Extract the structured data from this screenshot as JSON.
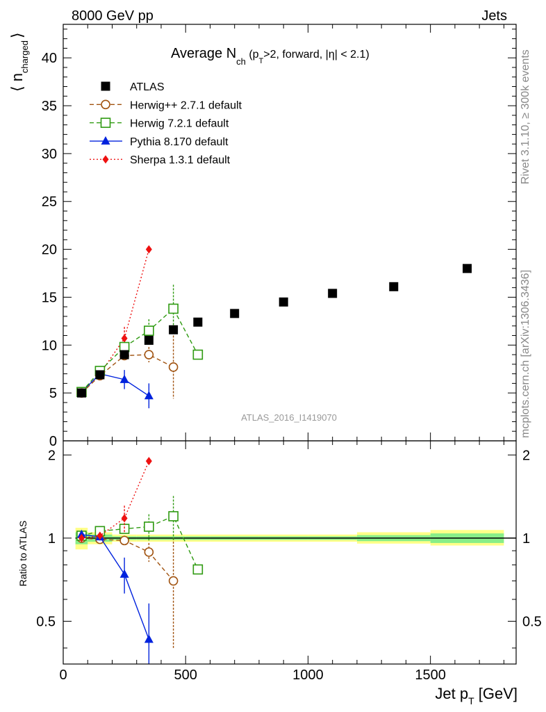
{
  "header": {
    "left": "8000 GeV pp",
    "right": "Jets"
  },
  "side_texts": {
    "rivet": "Rivet 3.1.10, ≥ 300k events",
    "mcplots": "mcplots.cern.ch [arXiv:1306.3436]"
  },
  "watermark": "ATLAS_2016_I1419070",
  "chart_data": [
    {
      "type": "scatter",
      "panel": "main",
      "title_main": "Average N",
      "title_sub": "ch",
      "title_rest_a": " (p",
      "title_rest_sub": "T",
      "title_rest_b": ">2, forward, |η| < 2.1)",
      "ylabel_main": "⟨ n",
      "ylabel_sub": "charged",
      "ylabel_close": "⟩",
      "xlim": [
        0,
        1850
      ],
      "ylim": [
        0,
        43.5
      ],
      "yticks": [
        0,
        5,
        10,
        15,
        20,
        25,
        30,
        35,
        40
      ],
      "ytick_labels": [
        "0",
        "5",
        "10",
        "15",
        "20",
        "25",
        "30",
        "35",
        "40"
      ],
      "legend_position": "top-left",
      "series": [
        {
          "name": "ATLAS",
          "color": "#000000",
          "marker": "square-filled",
          "line": "none",
          "points": [
            {
              "x": 75,
              "y": 5.0,
              "err": 0
            },
            {
              "x": 150,
              "y": 6.9,
              "err": 0
            },
            {
              "x": 250,
              "y": 9.0,
              "err": 0
            },
            {
              "x": 350,
              "y": 10.5,
              "err": 0
            },
            {
              "x": 450,
              "y": 11.6,
              "err": 0
            },
            {
              "x": 550,
              "y": 12.4,
              "err": 0
            },
            {
              "x": 700,
              "y": 13.3,
              "err": 0
            },
            {
              "x": 900,
              "y": 14.5,
              "err": 0
            },
            {
              "x": 1100,
              "y": 15.4,
              "err": 0
            },
            {
              "x": 1350,
              "y": 16.1,
              "err": 0
            },
            {
              "x": 1650,
              "y": 18.0,
              "err": 0
            }
          ]
        },
        {
          "name": "Herwig++ 2.7.1 default",
          "color": "#a0520f",
          "marker": "circle-open",
          "line": "dashed",
          "points": [
            {
              "x": 75,
              "y": 5.0,
              "err": 0.2
            },
            {
              "x": 150,
              "y": 6.8,
              "err": 0.2
            },
            {
              "x": 250,
              "y": 8.9,
              "err": 0.4
            },
            {
              "x": 350,
              "y": 9.0,
              "err": 0.8
            },
            {
              "x": 450,
              "y": 7.7,
              "err": 3.3
            }
          ]
        },
        {
          "name": "Herwig 7.2.1 default",
          "color": "#2e9a10",
          "marker": "square-open",
          "line": "dashed",
          "points": [
            {
              "x": 75,
              "y": 5.1,
              "err": 0.2
            },
            {
              "x": 150,
              "y": 7.3,
              "err": 0.2
            },
            {
              "x": 250,
              "y": 9.8,
              "err": 0.4
            },
            {
              "x": 350,
              "y": 11.5,
              "err": 1.2
            },
            {
              "x": 450,
              "y": 13.8,
              "err": 2.5
            },
            {
              "x": 550,
              "y": 9.0,
              "err": 0
            }
          ]
        },
        {
          "name": "Pythia 8.170 default",
          "color": "#0022dd",
          "marker": "triangle-filled",
          "line": "solid",
          "points": [
            {
              "x": 75,
              "y": 5.1,
              "err": 0.2
            },
            {
              "x": 150,
              "y": 7.0,
              "err": 0.2
            },
            {
              "x": 250,
              "y": 6.4,
              "err": 1.0
            },
            {
              "x": 350,
              "y": 4.7,
              "err": 1.3
            }
          ]
        },
        {
          "name": "Sherpa 1.3.1 default",
          "color": "#ee1111",
          "marker": "diamond-filled",
          "line": "dotted",
          "points": [
            {
              "x": 75,
              "y": 5.0,
              "err": 0.2
            },
            {
              "x": 150,
              "y": 7.0,
              "err": 0.2
            },
            {
              "x": 250,
              "y": 10.7,
              "err": 1.2
            },
            {
              "x": 350,
              "y": 20.0,
              "err": 0
            }
          ]
        }
      ]
    },
    {
      "type": "scatter",
      "panel": "ratio",
      "ylabel": "Ratio to ATLAS",
      "xlabel_main": "Jet p",
      "xlabel_sub": "T",
      "xlabel_unit": " [GeV]",
      "xlim": [
        0,
        1850
      ],
      "ylim": [
        0.35,
        2.25
      ],
      "xticks": [
        0,
        500,
        1000,
        1500
      ],
      "xtick_labels": [
        "0",
        "500",
        "1000",
        "1500"
      ],
      "yticks": [
        0.5,
        1,
        2
      ],
      "ytick_labels": [
        "0.5",
        "1",
        "2"
      ],
      "reference_bands": [
        {
          "x0": 50,
          "x1": 100,
          "inner": [
            0.95,
            1.05
          ],
          "outer": [
            0.91,
            1.09
          ]
        },
        {
          "x0": 100,
          "x1": 200,
          "inner": [
            0.97,
            1.03
          ],
          "outer": [
            0.95,
            1.05
          ]
        },
        {
          "x0": 200,
          "x1": 300,
          "inner": [
            0.985,
            1.015
          ],
          "outer": [
            0.97,
            1.03
          ]
        },
        {
          "x0": 300,
          "x1": 400,
          "inner": [
            0.985,
            1.015
          ],
          "outer": [
            0.97,
            1.03
          ]
        },
        {
          "x0": 400,
          "x1": 500,
          "inner": [
            0.985,
            1.015
          ],
          "outer": [
            0.97,
            1.03
          ]
        },
        {
          "x0": 500,
          "x1": 600,
          "inner": [
            0.985,
            1.015
          ],
          "outer": [
            0.97,
            1.03
          ]
        },
        {
          "x0": 600,
          "x1": 800,
          "inner": [
            0.985,
            1.015
          ],
          "outer": [
            0.97,
            1.03
          ]
        },
        {
          "x0": 800,
          "x1": 1000,
          "inner": [
            0.985,
            1.015
          ],
          "outer": [
            0.97,
            1.03
          ]
        },
        {
          "x0": 1000,
          "x1": 1200,
          "inner": [
            0.985,
            1.015
          ],
          "outer": [
            0.97,
            1.03
          ]
        },
        {
          "x0": 1200,
          "x1": 1500,
          "inner": [
            0.975,
            1.025
          ],
          "outer": [
            0.955,
            1.05
          ]
        },
        {
          "x0": 1500,
          "x1": 1800,
          "inner": [
            0.96,
            1.04
          ],
          "outer": [
            0.94,
            1.07
          ]
        }
      ],
      "series": [
        {
          "name": "Herwig++ 2.7.1 default",
          "color": "#a0520f",
          "marker": "circle-open",
          "line": "dashed",
          "points": [
            {
              "x": 75,
              "y": 1.0,
              "err": 0.03
            },
            {
              "x": 150,
              "y": 0.99,
              "err": 0.03
            },
            {
              "x": 250,
              "y": 0.98,
              "err": 0.04
            },
            {
              "x": 350,
              "y": 0.89,
              "err": 0.07
            },
            {
              "x": 450,
              "y": 0.7,
              "err": 0.3
            }
          ]
        },
        {
          "name": "Herwig 7.2.1 default",
          "color": "#2e9a10",
          "marker": "square-open",
          "line": "dashed",
          "points": [
            {
              "x": 75,
              "y": 1.02,
              "err": 0.03
            },
            {
              "x": 150,
              "y": 1.06,
              "err": 0.03
            },
            {
              "x": 250,
              "y": 1.08,
              "err": 0.04
            },
            {
              "x": 350,
              "y": 1.1,
              "err": 0.12
            },
            {
              "x": 450,
              "y": 1.2,
              "err": 0.22
            },
            {
              "x": 550,
              "y": 0.77,
              "err": 0
            }
          ]
        },
        {
          "name": "Pythia 8.170 default",
          "color": "#0022dd",
          "marker": "triangle-filled",
          "line": "solid",
          "points": [
            {
              "x": 75,
              "y": 1.03,
              "err": 0.03
            },
            {
              "x": 150,
              "y": 1.01,
              "err": 0.03
            },
            {
              "x": 250,
              "y": 0.74,
              "err": 0.11
            },
            {
              "x": 350,
              "y": 0.43,
              "err": 0.15
            }
          ]
        },
        {
          "name": "Sherpa 1.3.1 default",
          "color": "#ee1111",
          "marker": "diamond-filled",
          "line": "dotted",
          "points": [
            {
              "x": 75,
              "y": 1.0,
              "err": 0.03
            },
            {
              "x": 150,
              "y": 1.02,
              "err": 0.03
            },
            {
              "x": 250,
              "y": 1.18,
              "err": 0.13
            },
            {
              "x": 350,
              "y": 1.9,
              "err": 0
            }
          ]
        }
      ]
    }
  ]
}
